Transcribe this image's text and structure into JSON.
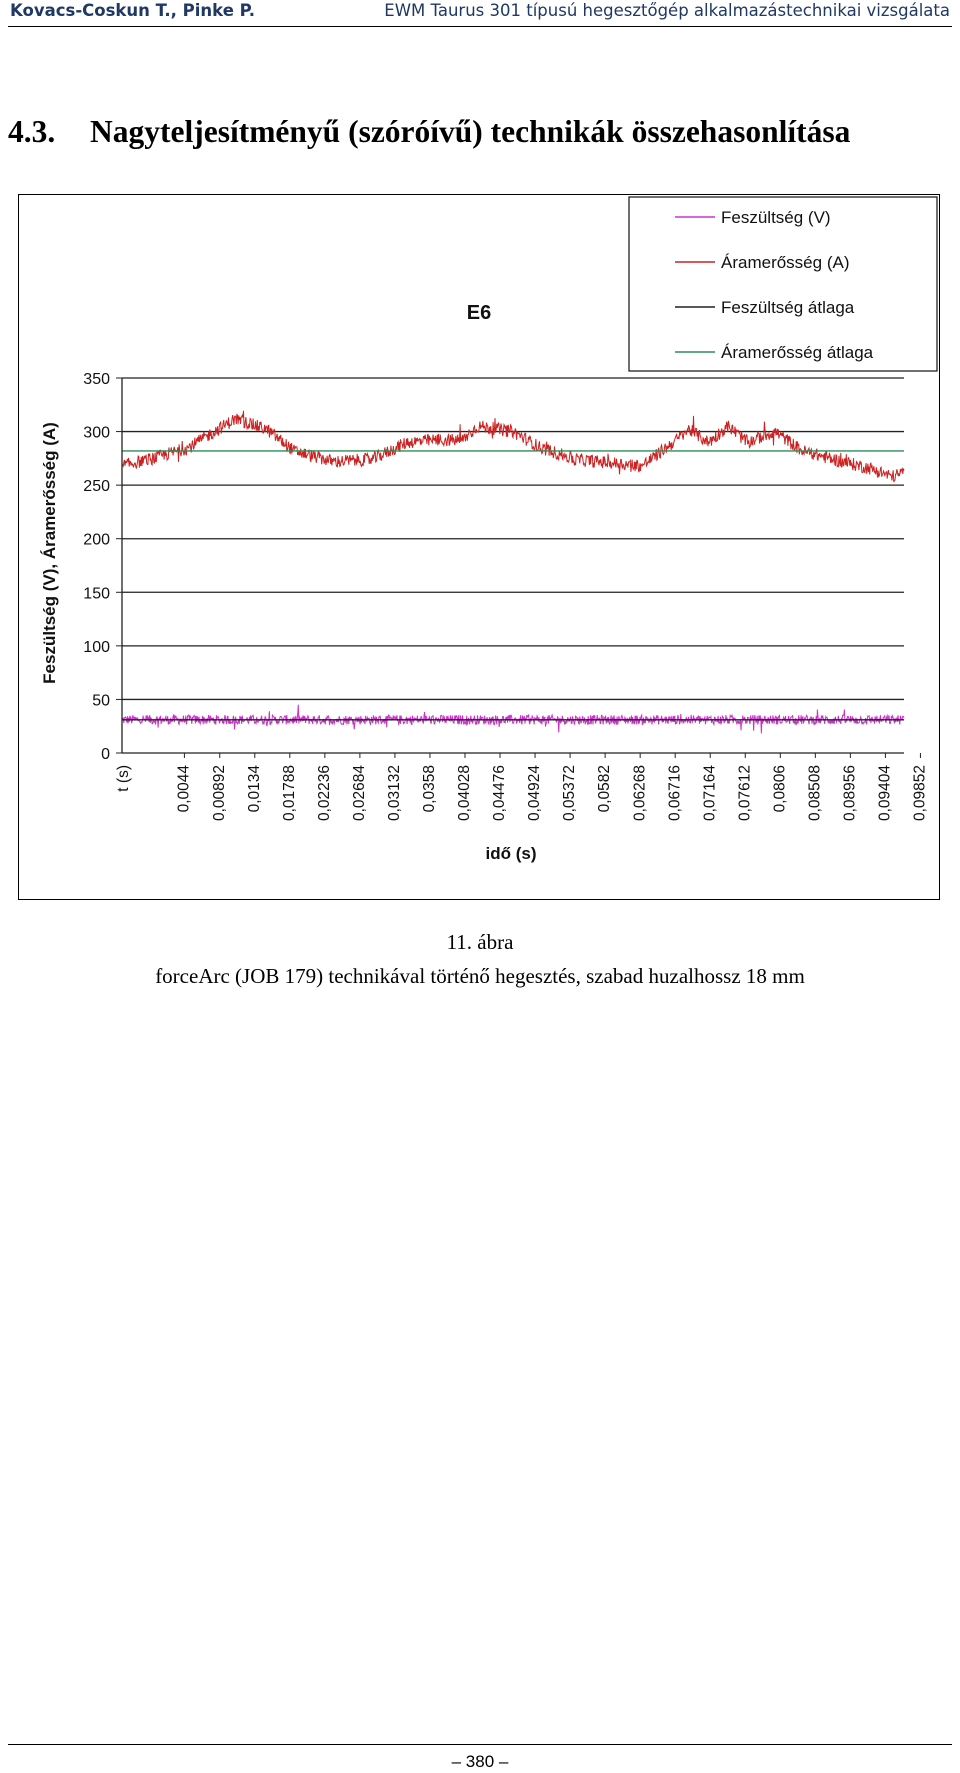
{
  "header": {
    "authors": "Kovacs-Coskun T., Pinke P.",
    "title": "EWM Taurus 301 típusú hegesztőgép alkalmazástechnikai vizsgálata"
  },
  "section": {
    "number": "4.3.",
    "title": "Nagyteljesítményű (szóróívű) technikák összehasonlítása"
  },
  "chart_data": {
    "type": "line",
    "title": "E6",
    "xlabel": "idő (s)",
    "ylabel": "Feszültség (V), Áramerősség (A)",
    "first_category_label": "t (s)",
    "x_tick_labels": [
      "0,0044",
      "0,00892",
      "0,0134",
      "0,01788",
      "0,02236",
      "0,02684",
      "0,03132",
      "0,0358",
      "0,04028",
      "0,04476",
      "0,04924",
      "0,05372",
      "0,0582",
      "0,06268",
      "0,06716",
      "0,07164",
      "0,07612",
      "0,0806",
      "0,08508",
      "0,08956",
      "0,09404",
      "0,09852"
    ],
    "x_ticks": [
      0.0044,
      0.00892,
      0.0134,
      0.01788,
      0.02236,
      0.02684,
      0.03132,
      0.0358,
      0.04028,
      0.04476,
      0.04924,
      0.05372,
      0.0582,
      0.06268,
      0.06716,
      0.07164,
      0.07612,
      0.0806,
      0.08508,
      0.08956,
      0.09404,
      0.09852
    ],
    "xlim": [
      0,
      0.1
    ],
    "ylim": [
      0,
      350
    ],
    "y_ticks": [
      0,
      50,
      100,
      150,
      200,
      250,
      300,
      350
    ],
    "grid": true,
    "legend_position": "top-right",
    "series": [
      {
        "name": "Feszültség (V)",
        "color": "#cc33cc",
        "noise": 4.5,
        "x": [
          0,
          0.1
        ],
        "values": [
          31,
          31
        ]
      },
      {
        "name": "Áramerősség (A)",
        "color": "#cc2222",
        "noise": 6,
        "x": [
          0,
          0.004,
          0.0085,
          0.0125,
          0.0145,
          0.0185,
          0.022,
          0.027,
          0.032,
          0.0365,
          0.04,
          0.0435,
          0.0455,
          0.05,
          0.0535,
          0.058,
          0.0635,
          0.0665,
          0.0705,
          0.0725,
          0.075,
          0.0775,
          0.08,
          0.0835,
          0.087,
          0.092,
          0.0955,
          0.0985,
          0.1
        ],
        "values": [
          268,
          275,
          285,
          303,
          312,
          302,
          282,
          272,
          274,
          290,
          292,
          292,
          305,
          300,
          285,
          274,
          270,
          268,
          290,
          302,
          290,
          305,
          290,
          300,
          282,
          272,
          266,
          258,
          262
        ]
      },
      {
        "name": "Feszültség átlaga",
        "color": "#222222",
        "noise": 0,
        "x": [
          0,
          0.1
        ],
        "values": [
          31,
          31
        ]
      },
      {
        "name": "Áramerősség átlaga",
        "color": "#2e8b57",
        "noise": 0,
        "x": [
          0,
          0.1
        ],
        "values": [
          282,
          282
        ]
      }
    ]
  },
  "caption": {
    "number": "11. ábra",
    "text": "forceArc (JOB 179) technikával történő hegesztés, szabad huzalhossz 18 mm"
  },
  "footer": {
    "page_number": "– 380 –"
  }
}
